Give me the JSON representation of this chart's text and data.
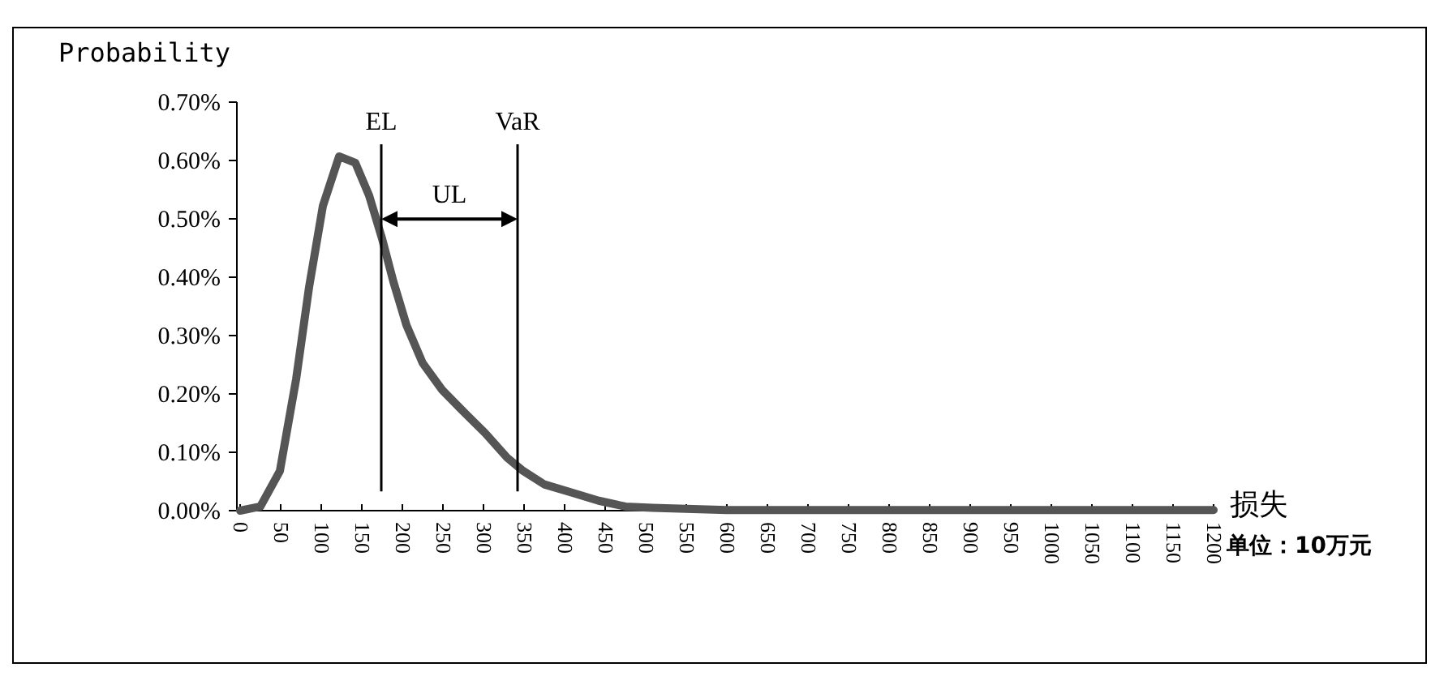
{
  "chart_data": {
    "type": "line",
    "ylabel": "Probability",
    "xlabel": "损失",
    "annotations": [
      "单位：10万元",
      "UL"
    ],
    "x": [
      0,
      25,
      49,
      69,
      85,
      102,
      122,
      142,
      159,
      175,
      189,
      205,
      225,
      249,
      275,
      302,
      329,
      349,
      375,
      409,
      442,
      475,
      508,
      600,
      800,
      1000,
      1200
    ],
    "series": [
      {
        "color": "#555555",
        "values": [
          0,
          0.007,
          0.068,
          0.225,
          0.383,
          0.522,
          0.607,
          0.596,
          0.54,
          0.466,
          0.392,
          0.318,
          0.253,
          0.207,
          0.17,
          0.133,
          0.091,
          0.068,
          0.045,
          0.031,
          0.017,
          0.007,
          0.005,
          0.001,
          0.001,
          0.001,
          0.001
        ]
      }
    ],
    "ref_lines": [
      {
        "axis": "x",
        "value": 174,
        "label": "EL",
        "color": "#000000"
      },
      {
        "axis": "x",
        "value": 342,
        "label": "VaR",
        "color": "#000000"
      }
    ],
    "xlim": [
      -4,
      1204
    ],
    "xticks": [
      0,
      50,
      100,
      150,
      200,
      250,
      300,
      350,
      400,
      450,
      500,
      550,
      600,
      650,
      700,
      750,
      800,
      850,
      900,
      950,
      1000,
      1050,
      1100,
      1150,
      1200
    ],
    "ylim": [
      0,
      0.7
    ],
    "yticks": [
      {
        "value": 0,
        "label": "0.00%"
      },
      {
        "value": 0.1,
        "label": "0.10%"
      },
      {
        "value": 0.2,
        "label": "0.20%"
      },
      {
        "value": 0.3,
        "label": "0.30%"
      },
      {
        "value": 0.4,
        "label": "0.40%"
      },
      {
        "value": 0.5,
        "label": "0.50%"
      },
      {
        "value": 0.6,
        "label": "0.60%"
      },
      {
        "value": 0.7,
        "label": "0.70%"
      }
    ],
    "grid": false,
    "line_style": "solid"
  }
}
